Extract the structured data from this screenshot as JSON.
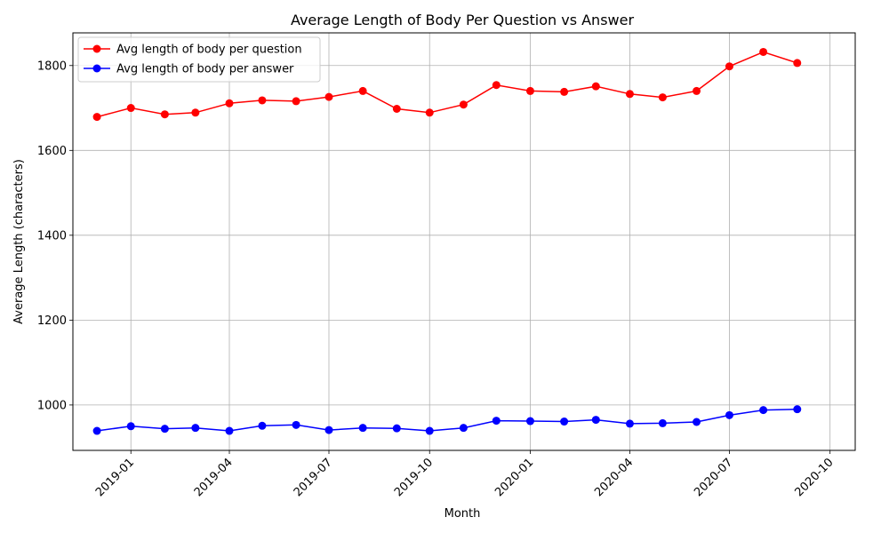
{
  "chart_data": {
    "type": "line",
    "title": "Average Length of Body Per Question vs Answer",
    "xlabel": "Month",
    "ylabel": "Average Length (characters)",
    "x": [
      "2018-12-01",
      "2019-01-01",
      "2019-02-01",
      "2019-03-01",
      "2019-04-01",
      "2019-05-01",
      "2019-06-01",
      "2019-07-01",
      "2019-08-01",
      "2019-09-01",
      "2019-10-01",
      "2019-11-01",
      "2019-12-01",
      "2020-01-01",
      "2020-02-01",
      "2020-03-01",
      "2020-04-01",
      "2020-05-01",
      "2020-06-01",
      "2020-07-01",
      "2020-08-01",
      "2020-09-01"
    ],
    "xticks": [
      "2019-01",
      "2019-04",
      "2019-07",
      "2019-10",
      "2020-01",
      "2020-04",
      "2020-07",
      "2020-10"
    ],
    "xlim": [
      "2018-11-09",
      "2020-10-24"
    ],
    "yticks": [
      1000,
      1200,
      1400,
      1600,
      1800
    ],
    "ylim": [
      893,
      1877
    ],
    "grid": true,
    "legend_position": "top-left",
    "series": [
      {
        "name": "Avg length of body per question",
        "color": "#ff0000",
        "values": [
          1679,
          1700,
          1685,
          1689,
          1711,
          1718,
          1716,
          1726,
          1740,
          1698,
          1689,
          1708,
          1754,
          1740,
          1738,
          1751,
          1733,
          1725,
          1740,
          1798,
          1832,
          1806
        ]
      },
      {
        "name": "Avg length of body per answer",
        "color": "#0000ff",
        "values": [
          939,
          950,
          944,
          946,
          939,
          951,
          953,
          941,
          946,
          945,
          939,
          946,
          963,
          962,
          961,
          965,
          956,
          957,
          960,
          976,
          988,
          990
        ]
      }
    ]
  }
}
